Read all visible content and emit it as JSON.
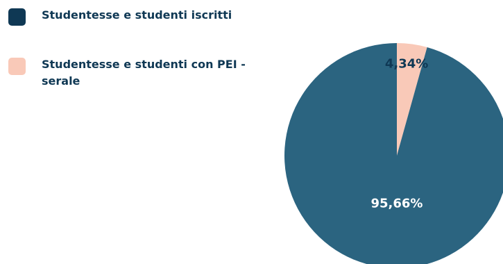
{
  "chart_data": {
    "type": "pie",
    "slices": [
      {
        "label": "Studentesse e studenti iscritti",
        "value": 95.66,
        "value_label": "95,66%",
        "color": "#2b6480",
        "text_color": "#ffffff"
      },
      {
        "label": "Studentesse e studenti con PEI - serale",
        "value": 4.34,
        "value_label": "4,34%",
        "color": "#f9c9b8",
        "text_color": "#0f3854"
      }
    ],
    "legend": {
      "position": "top-left",
      "items": [
        {
          "label": "Studentesse e studenti iscritti",
          "color": "#0f3854"
        },
        {
          "label": "Studentesse e studenti con PEI - serale",
          "color": "#f9c9b8"
        }
      ]
    },
    "start_angle": "12 o'clock",
    "direction": "clockwise"
  }
}
